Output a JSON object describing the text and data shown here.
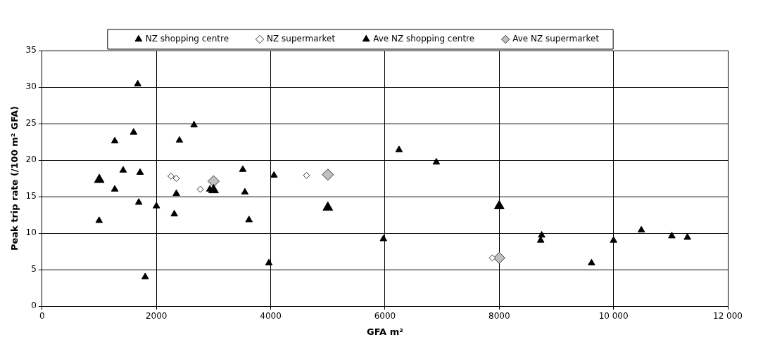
{
  "chart_data": {
    "type": "scatter",
    "xlabel": "GFA m²",
    "ylabel": "Peak trip rate (/100 m² GFA)",
    "xlim": [
      0,
      12000
    ],
    "xticks": [
      0,
      2000,
      4000,
      6000,
      8000,
      {
        "value": 10000,
        "label": "10 000"
      },
      {
        "value": 12000,
        "label": "12 000"
      }
    ],
    "ylim": [
      0,
      35
    ],
    "yticks": [
      0,
      5,
      10,
      15,
      20,
      25,
      30,
      35
    ],
    "grid": true,
    "legend": "top",
    "series": [
      {
        "name": "NZ shopping centre",
        "color": "#000000",
        "marker": "triangle",
        "x": [
          1673,
          2658,
          1601,
          1271,
          2403,
          1418,
          1714,
          1271,
          2349,
          3512,
          4058,
          3548,
          2935,
          1691,
          2000,
          2313,
          997,
          3620,
          3968,
          1803,
          6246,
          6899,
          5973,
          8742,
          8725,
          10000,
          9615,
          10487,
          11020,
          11293
        ],
        "values": [
          30.4,
          24.8,
          23.8,
          22.6,
          22.7,
          18.6,
          18.3,
          16.0,
          15.4,
          18.7,
          17.9,
          15.6,
          16.0,
          14.2,
          13.7,
          12.6,
          11.7,
          11.8,
          5.9,
          4.0,
          21.4,
          19.7,
          9.2,
          9.7,
          9.0,
          9.0,
          5.9,
          10.4,
          9.6,
          9.4
        ]
      },
      {
        "name": "NZ supermarket",
        "color": "#ffffff",
        "marker": "diamond",
        "x": [
          2255,
          2349,
          2769,
          4627,
          7879
        ],
        "values": [
          17.8,
          17.5,
          16.0,
          17.9,
          6.6
        ]
      },
      {
        "name": "Ave NZ shopping centre",
        "color": "#000000",
        "marker": "triangle",
        "x": [
          1000,
          3000,
          5000,
          8000
        ],
        "values": [
          17.3,
          15.9,
          13.5,
          13.7
        ]
      },
      {
        "name": "Ave NZ supermarket",
        "color": "#c0c0c0",
        "marker": "diamond",
        "x": [
          3000,
          5000,
          8000
        ],
        "values": [
          17.1,
          18.0,
          6.6
        ]
      }
    ]
  }
}
